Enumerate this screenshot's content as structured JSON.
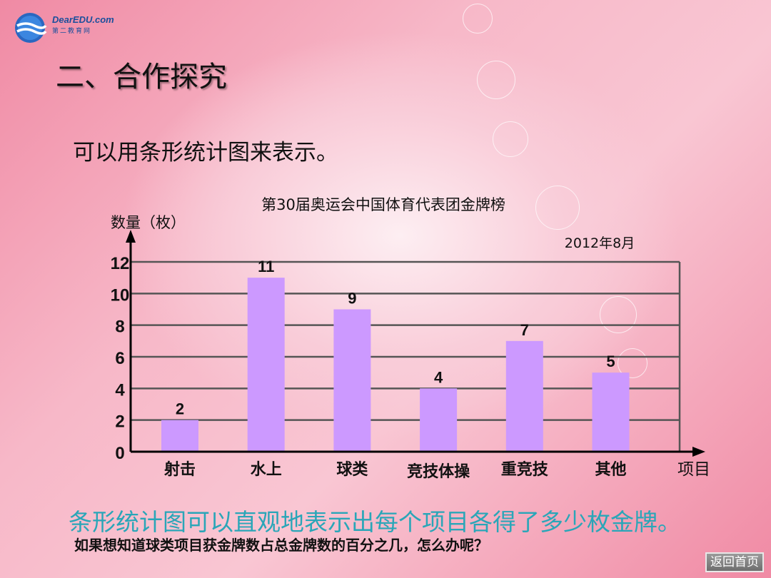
{
  "logo": {
    "brand": "DearEDU.com",
    "sub": "第二教育网"
  },
  "page_title": "二、合作探究",
  "intro_text": "可以用条形统计图来表示。",
  "chart_data": {
    "type": "bar",
    "title": "第30届奥运会中国体育代表团金牌榜",
    "subtitle": "2012年8月",
    "ylabel": "数量（枚）",
    "xlabel": "项目",
    "categories": [
      "射击",
      "水上",
      "球类",
      "竞技体操",
      "重竞技",
      "其他"
    ],
    "values": [
      2,
      11,
      9,
      4,
      7,
      5
    ],
    "yticks": [
      0,
      2,
      4,
      6,
      8,
      10,
      12
    ],
    "ylim": [
      0,
      12
    ],
    "grid": true,
    "bar_color": "#cc99ff"
  },
  "summary_text": "条形统计图可以直观地表示出每个项目各得了多少枚金牌。",
  "question_text": "如果想知道球类项目获金牌数占总金牌数的百分之几，怎么办呢？",
  "home_button_label": "返回首页"
}
